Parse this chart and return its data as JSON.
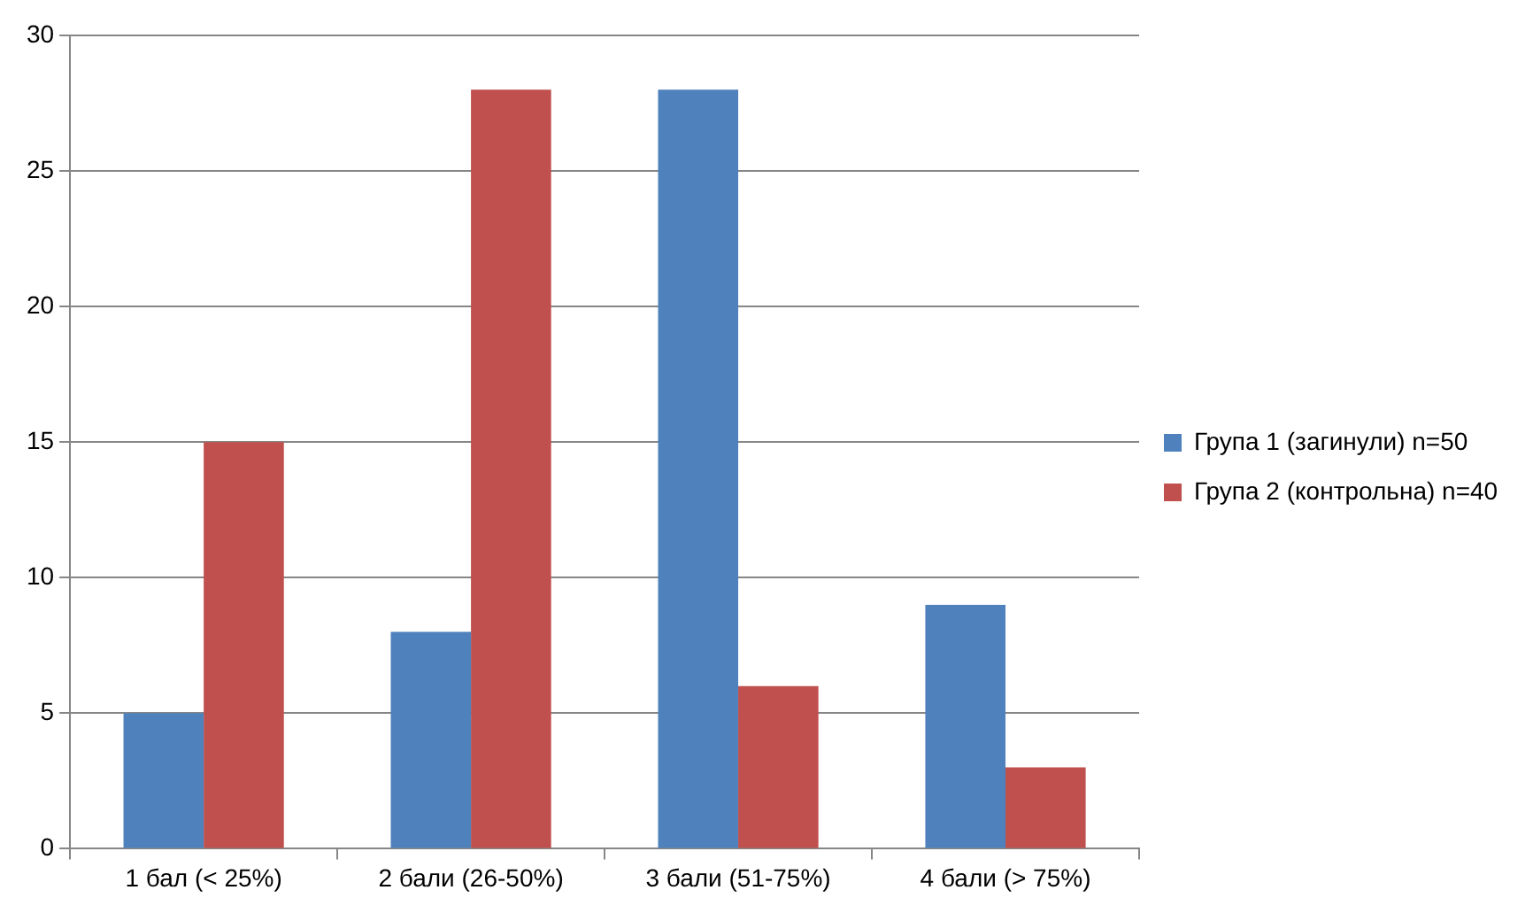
{
  "chart_data": {
    "type": "bar",
    "categories": [
      "1 бал (< 25%)",
      "2 бали (26-50%)",
      "3 бали (51-75%)",
      "4 бали (> 75%)"
    ],
    "series": [
      {
        "name": "Група 1 (загинули) n=50",
        "color": "#4f81bd",
        "values": [
          5,
          8,
          28,
          9
        ]
      },
      {
        "name": "Група 2 (контрольна) n=40",
        "color": "#c0504d",
        "values": [
          15,
          28,
          6,
          3
        ]
      }
    ],
    "ylim": [
      0,
      30
    ],
    "yticks": [
      0,
      5,
      10,
      15,
      20,
      25,
      30
    ],
    "grid": "y",
    "legend": "right"
  }
}
